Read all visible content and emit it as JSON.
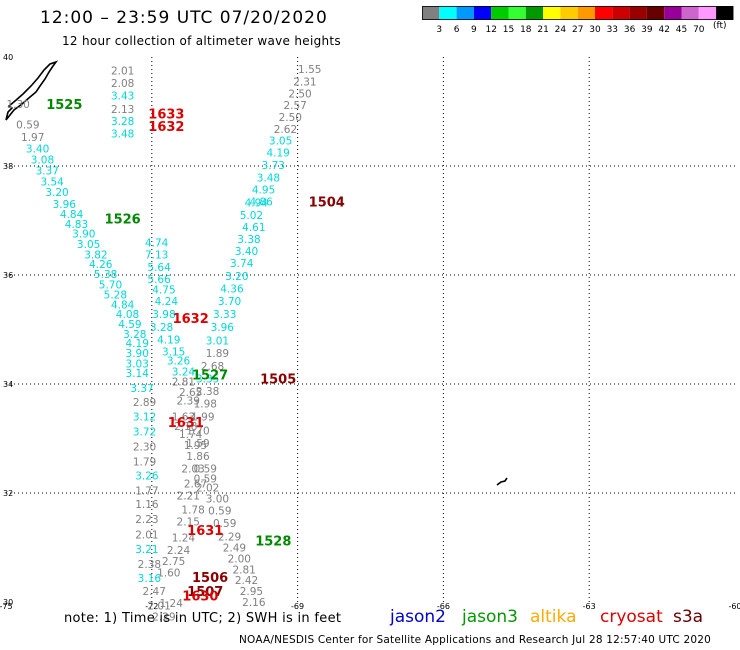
{
  "header": {
    "title": "12:00 – 23:59 UTC 07/20/2020",
    "subtitle": "12 hour collection of altimeter wave heights"
  },
  "colorbar": {
    "labels": [
      "3",
      "6",
      "9",
      "12",
      "15",
      "18",
      "21",
      "24",
      "27",
      "30",
      "33",
      "36",
      "39",
      "42",
      "45",
      "70"
    ],
    "colors": [
      "#808080",
      "#00ffff",
      "#0099ff",
      "#0000ff",
      "#00cc00",
      "#33ff33",
      "#009900",
      "#ffff00",
      "#ffcc00",
      "#ff9900",
      "#ff0000",
      "#cc0000",
      "#990000",
      "#660000",
      "#990099",
      "#cc66cc",
      "#ff99ff",
      "#000000"
    ],
    "units": "(ft)"
  },
  "chart_data": {
    "type": "scatter",
    "xlim": [
      -75,
      -60
    ],
    "ylim": [
      30,
      40
    ],
    "x_ticks": [
      -75,
      -72,
      -69,
      -66,
      -63,
      -60
    ],
    "y_ticks": [
      30,
      32,
      34,
      36,
      38,
      40
    ],
    "x_tick_labels": [
      "-75",
      "-72",
      "-69",
      "-66",
      "-63",
      "-60"
    ],
    "y_tick_labels": [
      "30",
      "32",
      "34",
      "36",
      "38",
      "40"
    ],
    "grid": true,
    "color_key": {
      "gray": "#808080",
      "cyan": "#00d8d8",
      "green": "#008800",
      "red": "#dd0000",
      "darkred": "#880000"
    },
    "pass_labels": [
      {
        "text": "1525",
        "lon": -73.8,
        "lat": 39.14,
        "color": "green"
      },
      {
        "text": "1633",
        "lon": -71.7,
        "lat": 38.96,
        "color": "red"
      },
      {
        "text": "1632",
        "lon": -71.7,
        "lat": 38.73,
        "color": "red"
      },
      {
        "text": "1504",
        "lon": -68.4,
        "lat": 37.35,
        "color": "darkred"
      },
      {
        "text": "1526",
        "lon": -72.6,
        "lat": 37.04,
        "color": "green"
      },
      {
        "text": "1632",
        "lon": -71.2,
        "lat": 35.21,
        "color": "red"
      },
      {
        "text": "1527",
        "lon": -70.8,
        "lat": 34.17,
        "color": "green"
      },
      {
        "text": "1505",
        "lon": -69.4,
        "lat": 34.1,
        "color": "darkred"
      },
      {
        "text": "1631",
        "lon": -71.3,
        "lat": 33.3,
        "color": "red"
      },
      {
        "text": "1631",
        "lon": -70.9,
        "lat": 31.32,
        "color": "red"
      },
      {
        "text": "1528",
        "lon": -69.5,
        "lat": 31.13,
        "color": "green"
      },
      {
        "text": "1506",
        "lon": -70.8,
        "lat": 30.46,
        "color": "darkred"
      },
      {
        "text": "1507",
        "lon": -70.9,
        "lat": 30.2,
        "color": "darkred"
      },
      {
        "text": "1630",
        "lon": -71.0,
        "lat": 30.12,
        "color": "red"
      }
    ],
    "points": [
      {
        "v": "2.01",
        "lon": -72.6,
        "lat": 39.75,
        "c": "gray"
      },
      {
        "v": "2.08",
        "lon": -72.6,
        "lat": 39.52,
        "c": "gray"
      },
      {
        "v": "3.43",
        "lon": -72.6,
        "lat": 39.29,
        "c": "cyan"
      },
      {
        "v": "2.13",
        "lon": -72.6,
        "lat": 39.05,
        "c": "gray"
      },
      {
        "v": "3.28",
        "lon": -72.6,
        "lat": 38.83,
        "c": "cyan"
      },
      {
        "v": "3.48",
        "lon": -72.6,
        "lat": 38.6,
        "c": "cyan"
      },
      {
        "v": "1.30",
        "lon": -74.75,
        "lat": 39.14,
        "c": "gray"
      },
      {
        "v": "0.59",
        "lon": -74.55,
        "lat": 38.76,
        "c": "gray"
      },
      {
        "v": "1.97",
        "lon": -74.45,
        "lat": 38.53,
        "c": "gray"
      },
      {
        "v": "3.40",
        "lon": -74.35,
        "lat": 38.32,
        "c": "cyan"
      },
      {
        "v": "3.08",
        "lon": -74.25,
        "lat": 38.12,
        "c": "cyan"
      },
      {
        "v": "3.37",
        "lon": -74.15,
        "lat": 37.92,
        "c": "cyan"
      },
      {
        "v": "3.54",
        "lon": -74.05,
        "lat": 37.72,
        "c": "cyan"
      },
      {
        "v": "3.20",
        "lon": -73.95,
        "lat": 37.52,
        "c": "cyan"
      },
      {
        "v": "3.96",
        "lon": -73.8,
        "lat": 37.3,
        "c": "cyan"
      },
      {
        "v": "4.84",
        "lon": -73.65,
        "lat": 37.12,
        "c": "cyan"
      },
      {
        "v": "4.83",
        "lon": -73.55,
        "lat": 36.94,
        "c": "cyan"
      },
      {
        "v": "3.90",
        "lon": -73.4,
        "lat": 36.76,
        "c": "cyan"
      },
      {
        "v": "3.05",
        "lon": -73.3,
        "lat": 36.57,
        "c": "cyan"
      },
      {
        "v": "3.82",
        "lon": -73.15,
        "lat": 36.38,
        "c": "cyan"
      },
      {
        "v": "4.26",
        "lon": -73.05,
        "lat": 36.2,
        "c": "cyan"
      },
      {
        "v": "5.38",
        "lon": -72.95,
        "lat": 36.02,
        "c": "cyan"
      },
      {
        "v": "5.70",
        "lon": -72.85,
        "lat": 35.83,
        "c": "cyan"
      },
      {
        "v": "5.28",
        "lon": -72.75,
        "lat": 35.64,
        "c": "cyan"
      },
      {
        "v": "4.84",
        "lon": -72.6,
        "lat": 35.46,
        "c": "cyan"
      },
      {
        "v": "4.08",
        "lon": -72.5,
        "lat": 35.28,
        "c": "cyan"
      },
      {
        "v": "4.59",
        "lon": -72.45,
        "lat": 35.1,
        "c": "cyan"
      },
      {
        "v": "3.28",
        "lon": -72.35,
        "lat": 34.92,
        "c": "cyan"
      },
      {
        "v": "4.19",
        "lon": -72.3,
        "lat": 34.75,
        "c": "cyan"
      },
      {
        "v": "3.90",
        "lon": -72.3,
        "lat": 34.57,
        "c": "cyan"
      },
      {
        "v": "3.03",
        "lon": -72.3,
        "lat": 34.38,
        "c": "cyan"
      },
      {
        "v": "3.14",
        "lon": -72.3,
        "lat": 34.2,
        "c": "cyan"
      },
      {
        "v": "3.37",
        "lon": -72.2,
        "lat": 33.93,
        "c": "cyan"
      },
      {
        "v": "4.74",
        "lon": -71.9,
        "lat": 36.6,
        "c": "cyan"
      },
      {
        "v": "7.13",
        "lon": -71.9,
        "lat": 36.38,
        "c": "cyan"
      },
      {
        "v": "5.64",
        "lon": -71.85,
        "lat": 36.15,
        "c": "cyan"
      },
      {
        "v": "5.66",
        "lon": -71.85,
        "lat": 35.93,
        "c": "cyan"
      },
      {
        "v": "4.75",
        "lon": -71.75,
        "lat": 35.73,
        "c": "cyan"
      },
      {
        "v": "4.24",
        "lon": -71.7,
        "lat": 35.52,
        "c": "cyan"
      },
      {
        "v": "3.98",
        "lon": -71.75,
        "lat": 35.28,
        "c": "cyan"
      },
      {
        "v": "3.28",
        "lon": -71.8,
        "lat": 35.05,
        "c": "cyan"
      },
      {
        "v": "4.19",
        "lon": -71.65,
        "lat": 34.82,
        "c": "cyan"
      },
      {
        "v": "3.15",
        "lon": -71.55,
        "lat": 34.6,
        "c": "cyan"
      },
      {
        "v": "3.26",
        "lon": -71.45,
        "lat": 34.43,
        "c": "cyan"
      },
      {
        "v": "3.24",
        "lon": -71.35,
        "lat": 34.23,
        "c": "cyan"
      },
      {
        "v": "2.81",
        "lon": -71.35,
        "lat": 34.05,
        "c": "gray"
      },
      {
        "v": "2.65",
        "lon": -71.2,
        "lat": 33.85,
        "c": "gray"
      },
      {
        "v": "2.89",
        "lon": -72.15,
        "lat": 33.67,
        "c": "gray"
      },
      {
        "v": "2.39",
        "lon": -71.25,
        "lat": 33.7,
        "c": "gray"
      },
      {
        "v": "3.12",
        "lon": -72.15,
        "lat": 33.4,
        "c": "cyan"
      },
      {
        "v": "3.72",
        "lon": -72.15,
        "lat": 33.13,
        "c": "cyan"
      },
      {
        "v": "2.30",
        "lon": -72.15,
        "lat": 32.85,
        "c": "gray"
      },
      {
        "v": "1.79",
        "lon": -72.15,
        "lat": 32.58,
        "c": "gray"
      },
      {
        "v": "3.26",
        "lon": -72.1,
        "lat": 32.32,
        "c": "cyan"
      },
      {
        "v": "1.77",
        "lon": -72.1,
        "lat": 32.05,
        "c": "gray"
      },
      {
        "v": "1.16",
        "lon": -72.1,
        "lat": 31.8,
        "c": "gray"
      },
      {
        "v": "2.23",
        "lon": -72.1,
        "lat": 31.52,
        "c": "gray"
      },
      {
        "v": "2.01",
        "lon": -72.1,
        "lat": 31.24,
        "c": "gray"
      },
      {
        "v": "3.21",
        "lon": -72.1,
        "lat": 30.97,
        "c": "cyan"
      },
      {
        "v": "2.38",
        "lon": -72.05,
        "lat": 30.7,
        "c": "gray"
      },
      {
        "v": "3.16",
        "lon": -72.05,
        "lat": 30.44,
        "c": "cyan"
      },
      {
        "v": "2.47",
        "lon": -71.95,
        "lat": 30.2,
        "c": "gray"
      },
      {
        "v": "2.01",
        "lon": -71.85,
        "lat": 29.94,
        "c": "gray"
      },
      {
        "v": "2.29",
        "lon": -71.75,
        "lat": 29.73,
        "c": "gray"
      },
      {
        "v": "1.55",
        "lon": -68.75,
        "lat": 39.78,
        "c": "gray"
      },
      {
        "v": "2.31",
        "lon": -68.85,
        "lat": 39.55,
        "c": "gray"
      },
      {
        "v": "2.50",
        "lon": -68.95,
        "lat": 39.33,
        "c": "gray"
      },
      {
        "v": "2.57",
        "lon": -69.05,
        "lat": 39.12,
        "c": "gray"
      },
      {
        "v": "2.50",
        "lon": -69.15,
        "lat": 38.9,
        "c": "gray"
      },
      {
        "v": "2.62",
        "lon": -69.25,
        "lat": 38.68,
        "c": "gray"
      },
      {
        "v": "3.05",
        "lon": -69.35,
        "lat": 38.47,
        "c": "cyan"
      },
      {
        "v": "4.19",
        "lon": -69.4,
        "lat": 38.25,
        "c": "cyan"
      },
      {
        "v": "3.73",
        "lon": -69.5,
        "lat": 38.02,
        "c": "cyan"
      },
      {
        "v": "3.48",
        "lon": -69.6,
        "lat": 37.79,
        "c": "cyan"
      },
      {
        "v": "4.95",
        "lon": -69.7,
        "lat": 37.57,
        "c": "cyan"
      },
      {
        "v": "4.86",
        "lon": -69.75,
        "lat": 37.35,
        "c": "cyan"
      },
      {
        "v": "4.94",
        "lon": -69.85,
        "lat": 37.33,
        "c": "cyan"
      },
      {
        "v": "5.02",
        "lon": -69.95,
        "lat": 37.1,
        "c": "cyan"
      },
      {
        "v": "4.61",
        "lon": -69.9,
        "lat": 36.88,
        "c": "cyan"
      },
      {
        "v": "3.38",
        "lon": -70.0,
        "lat": 36.66,
        "c": "cyan"
      },
      {
        "v": "3.40",
        "lon": -70.05,
        "lat": 36.44,
        "c": "cyan"
      },
      {
        "v": "3.74",
        "lon": -70.15,
        "lat": 36.22,
        "c": "cyan"
      },
      {
        "v": "3.20",
        "lon": -70.25,
        "lat": 35.98,
        "c": "cyan"
      },
      {
        "v": "4.36",
        "lon": -70.35,
        "lat": 35.75,
        "c": "cyan"
      },
      {
        "v": "3.70",
        "lon": -70.4,
        "lat": 35.52,
        "c": "cyan"
      },
      {
        "v": "3.33",
        "lon": -70.5,
        "lat": 35.28,
        "c": "cyan"
      },
      {
        "v": "3.96",
        "lon": -70.55,
        "lat": 35.05,
        "c": "cyan"
      },
      {
        "v": "3.01",
        "lon": -70.65,
        "lat": 34.8,
        "c": "cyan"
      },
      {
        "v": "1.89",
        "lon": -70.65,
        "lat": 34.57,
        "c": "gray"
      },
      {
        "v": "2.68",
        "lon": -70.75,
        "lat": 34.33,
        "c": "gray"
      },
      {
        "v": "3.35",
        "lon": -70.85,
        "lat": 34.1,
        "c": "cyan"
      },
      {
        "v": "2.38",
        "lon": -70.85,
        "lat": 33.87,
        "c": "gray"
      },
      {
        "v": "1.98",
        "lon": -70.9,
        "lat": 33.64,
        "c": "gray"
      },
      {
        "v": "1.99",
        "lon": -70.95,
        "lat": 33.4,
        "c": "gray"
      },
      {
        "v": "1.70",
        "lon": -71.05,
        "lat": 33.15,
        "c": "gray"
      },
      {
        "v": "1.63",
        "lon": -71.35,
        "lat": 33.4,
        "c": "gray"
      },
      {
        "v": "2.18",
        "lon": -71.3,
        "lat": 33.23,
        "c": "gray"
      },
      {
        "v": "1.74",
        "lon": -71.2,
        "lat": 33.08,
        "c": "gray"
      },
      {
        "v": "1.59",
        "lon": -71.05,
        "lat": 32.92,
        "c": "gray"
      },
      {
        "v": "1.95",
        "lon": -71.1,
        "lat": 32.88,
        "c": "gray"
      },
      {
        "v": "1.86",
        "lon": -71.05,
        "lat": 32.68,
        "c": "gray"
      },
      {
        "v": "2.03",
        "lon": -71.15,
        "lat": 32.45,
        "c": "gray"
      },
      {
        "v": "0.59",
        "lon": -70.9,
        "lat": 32.45,
        "c": "gray"
      },
      {
        "v": "0.59",
        "lon": -70.9,
        "lat": 32.27,
        "c": "gray"
      },
      {
        "v": "2.67",
        "lon": -71.1,
        "lat": 32.17,
        "c": "gray"
      },
      {
        "v": "2.02",
        "lon": -70.85,
        "lat": 32.1,
        "c": "gray"
      },
      {
        "v": "2.21",
        "lon": -71.25,
        "lat": 31.95,
        "c": "gray"
      },
      {
        "v": "3.00",
        "lon": -70.65,
        "lat": 31.9,
        "c": "gray"
      },
      {
        "v": "1.78",
        "lon": -71.15,
        "lat": 31.7,
        "c": "gray"
      },
      {
        "v": "0.59",
        "lon": -70.6,
        "lat": 31.68,
        "c": "gray"
      },
      {
        "v": "2.15",
        "lon": -71.25,
        "lat": 31.48,
        "c": "gray"
      },
      {
        "v": "0.59",
        "lon": -70.5,
        "lat": 31.45,
        "c": "gray"
      },
      {
        "v": "1.24",
        "lon": -71.35,
        "lat": 31.18,
        "c": "gray"
      },
      {
        "v": "2.29",
        "lon": -70.4,
        "lat": 31.2,
        "c": "gray"
      },
      {
        "v": "2.24",
        "lon": -71.45,
        "lat": 30.95,
        "c": "gray"
      },
      {
        "v": "2.49",
        "lon": -70.3,
        "lat": 31.0,
        "c": "gray"
      },
      {
        "v": "2.75",
        "lon": -71.55,
        "lat": 30.75,
        "c": "gray"
      },
      {
        "v": "2.00",
        "lon": -70.2,
        "lat": 30.8,
        "c": "gray"
      },
      {
        "v": "1.60",
        "lon": -71.65,
        "lat": 30.54,
        "c": "gray"
      },
      {
        "v": "2.81",
        "lon": -70.1,
        "lat": 30.6,
        "c": "gray"
      },
      {
        "v": "2.42",
        "lon": -70.05,
        "lat": 30.4,
        "c": "gray"
      },
      {
        "v": "2.95",
        "lon": -69.95,
        "lat": 30.2,
        "c": "gray"
      },
      {
        "v": "1.24",
        "lon": -71.6,
        "lat": 29.98,
        "c": "gray"
      },
      {
        "v": "2.16",
        "lon": -69.9,
        "lat": 30.0,
        "c": "gray"
      }
    ]
  },
  "note": "note:  1) Time is in UTC;  2) SWH is in feet",
  "legend": [
    {
      "label": "jason2",
      "color": "#0000cc"
    },
    {
      "label": "jason3",
      "color": "#009900"
    },
    {
      "label": "altika",
      "color": "#ffaa00"
    },
    {
      "label": "cryosat",
      "color": "#dd0000"
    },
    {
      "label": "s3a",
      "color": "#660000"
    }
  ],
  "footer": "NOAA/NESDIS Center for Satellite Applications and Research    Jul 28 12:57:40 UTC 2020"
}
